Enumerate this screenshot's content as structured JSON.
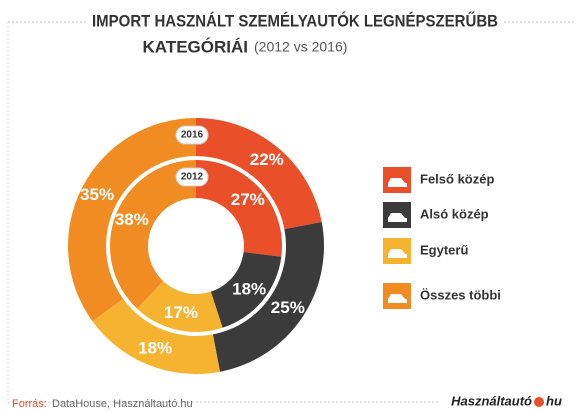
{
  "chart_data": {
    "type": "donut",
    "title": "IMPORT HASZNÁLT SZEMÉLYAUTÓK LEGNÉPSZERŰBB",
    "title_line2": "KATEGÓRIÁI",
    "subtitle": "(2012 vs 2016)",
    "categories": [
      "Felső közép",
      "Alsó közép",
      "Egyterű",
      "Összes többi"
    ],
    "colors": [
      "#e9502a",
      "#3b3b3b",
      "#f6b32f",
      "#f08c22"
    ],
    "series": [
      {
        "name": "2016",
        "values": [
          22,
          25,
          18,
          35
        ],
        "value_labels": [
          "22%",
          "25%",
          "18%",
          "35%"
        ]
      },
      {
        "name": "2012",
        "values": [
          27,
          18,
          17,
          38
        ],
        "value_labels": [
          "27%",
          "18%",
          "17%",
          "38%"
        ]
      }
    ],
    "source_label": "Forrás:",
    "source": "DataHouse, Használtautó.hu",
    "logo": "Használtautó",
    "logo_suffix": "hu"
  }
}
